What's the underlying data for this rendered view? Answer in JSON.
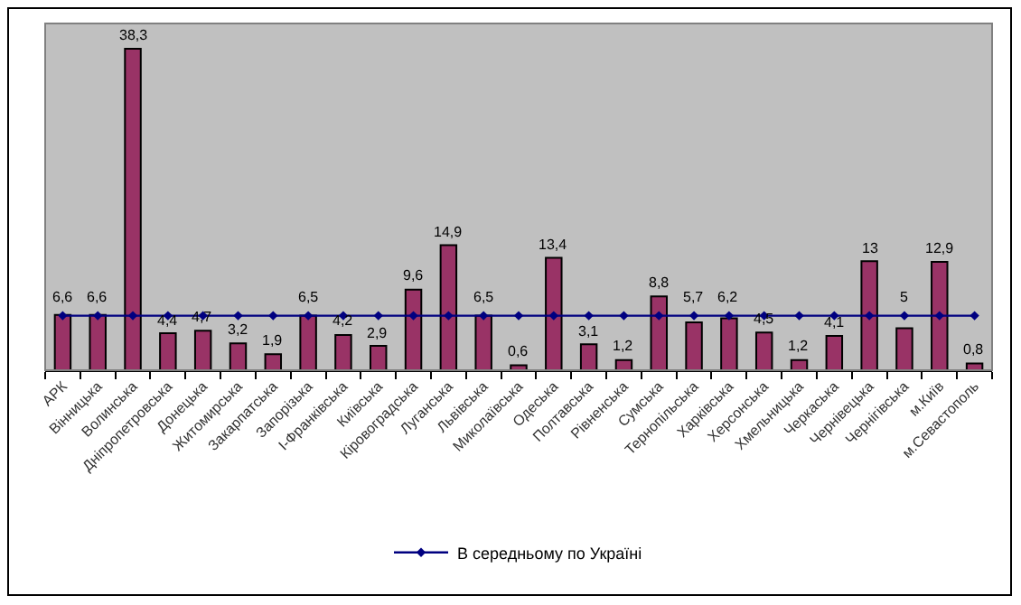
{
  "chart_data": {
    "type": "bar",
    "categories": [
      "АРК",
      "Вінницька",
      "Волинська",
      "Дніпропетровська",
      "Донецька",
      "Житомирська",
      "Закарпатська",
      "Запорізька",
      "І-Франківська",
      "Київська",
      "Кіровоградська",
      "Луганська",
      "Львівська",
      "Миколаївська",
      "Одеська",
      "Полтавська",
      "Рівненська",
      "Сумська",
      "Тернопільська",
      "Харківська",
      "Херсонська",
      "Хмельницька",
      "Черкаська",
      "Чернівецька",
      "Чернігівська",
      "м.Київ",
      "м.Севастополь"
    ],
    "series": [
      {
        "type": "bar",
        "color": "#993366",
        "values": [
          6.6,
          6.6,
          38.3,
          4.4,
          4.7,
          3.2,
          1.9,
          6.5,
          4.2,
          2.9,
          9.6,
          14.9,
          6.5,
          0.6,
          13.4,
          3.1,
          1.2,
          8.8,
          5.7,
          6.2,
          4.5,
          1.2,
          4.1,
          13,
          5,
          12.9,
          0.8
        ],
        "value_labels": [
          "6,6",
          "6,6",
          "38,3",
          "4,4",
          "4,7",
          "3,2",
          "1,9",
          "6,5",
          "4,2",
          "2,9",
          "9,6",
          "14,9",
          "6,5",
          "0,6",
          "13,4",
          "3,1",
          "1,2",
          "8,8",
          "5,7",
          "6,2",
          "4,5",
          "1,2",
          "4,1",
          "13",
          "5",
          "12,9",
          "0,8"
        ]
      },
      {
        "type": "line",
        "name": "В середньому по Україні",
        "color": "#000080",
        "marker": "diamond",
        "values": [
          6.5,
          6.5,
          6.5,
          6.5,
          6.5,
          6.5,
          6.5,
          6.5,
          6.5,
          6.5,
          6.5,
          6.5,
          6.5,
          6.5,
          6.5,
          6.5,
          6.5,
          6.5,
          6.5,
          6.5,
          6.5,
          6.5,
          6.5,
          6.5,
          6.5,
          6.5,
          6.5
        ]
      }
    ],
    "legend": "bottom",
    "grid": false,
    "tick_labels": "x"
  }
}
